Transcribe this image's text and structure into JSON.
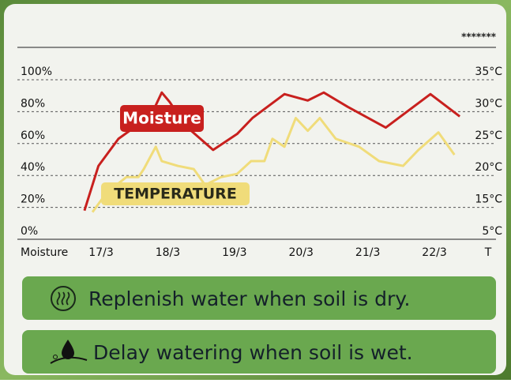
{
  "chart_data": {
    "type": "line",
    "xlabel": "Moisture",
    "y2label": "T",
    "xlim": [
      16.2,
      22.9
    ],
    "xticks": [
      {
        "value": 17,
        "label": "17/3"
      },
      {
        "value": 18,
        "label": "18/3"
      },
      {
        "value": 19,
        "label": "19/3"
      },
      {
        "value": 20,
        "label": "20/3"
      },
      {
        "value": 21,
        "label": "21/3"
      },
      {
        "value": 22,
        "label": "22/3"
      }
    ],
    "ylim": [
      0,
      100
    ],
    "yticks": [
      {
        "value": 0,
        "label": "0%"
      },
      {
        "value": 20,
        "label": "20%"
      },
      {
        "value": 40,
        "label": "40%"
      },
      {
        "value": 60,
        "label": "60%"
      },
      {
        "value": 80,
        "label": "80%"
      },
      {
        "value": 100,
        "label": "100%"
      }
    ],
    "y2_tick_labels": [
      "5°C",
      "15°C",
      "20°C",
      "25°C",
      "30°C",
      "35°C"
    ],
    "grid": true,
    "series": [
      {
        "name": "Moisture",
        "color": "#c8201e",
        "x": [
          16.75,
          16.96,
          17.26,
          17.56,
          17.73,
          17.91,
          18.03,
          18.27,
          18.68,
          19.04,
          19.27,
          19.75,
          20.1,
          20.34,
          20.7,
          21.27,
          21.94,
          22.38
        ],
        "values": [
          18,
          46,
          63,
          72,
          76,
          92,
          86,
          71,
          56,
          66,
          76,
          91,
          87,
          92,
          83,
          70,
          91,
          77
        ]
      },
      {
        "name": "TEMPERATURE",
        "color": "#f0dc7a",
        "x": [
          16.87,
          17.08,
          17.38,
          17.56,
          17.64,
          17.82,
          17.91,
          18.15,
          18.39,
          18.56,
          18.8,
          19.04,
          19.25,
          19.45,
          19.57,
          19.75,
          19.92,
          20.1,
          20.28,
          20.52,
          20.87,
          21.17,
          21.53,
          21.76,
          22.06,
          22.3
        ],
        "values": [
          17,
          29,
          39,
          39,
          44,
          58,
          49,
          46,
          44,
          34,
          39,
          41,
          49,
          49,
          63,
          58,
          76,
          68,
          76,
          63,
          58,
          49,
          46,
          56,
          67,
          53
        ]
      }
    ]
  },
  "badge": "*******",
  "tips": [
    "Replenish water when soil is dry.",
    "Delay watering when soil is wet."
  ]
}
